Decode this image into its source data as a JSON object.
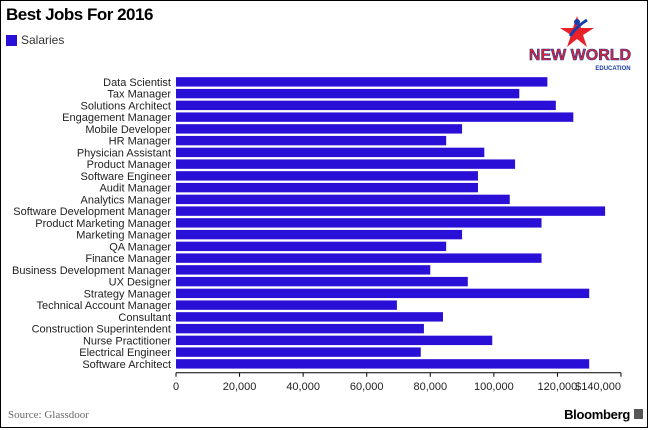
{
  "title": "Best Jobs For 2016",
  "legend": {
    "label": "Salaries",
    "color": "#2a0fd6"
  },
  "source": "Source: Glassdoor",
  "brand": "Bloomberg",
  "logo": {
    "line1": "NEW WORLD",
    "line2": "EDUCATION",
    "colors": {
      "red": "#e8202a",
      "blue": "#1a3ea8"
    }
  },
  "chart_data": {
    "type": "bar",
    "orientation": "horizontal",
    "categories": [
      "Data Scientist",
      "Tax Manager",
      "Solutions Architect",
      "Engagement Manager",
      "Mobile Developer",
      "HR Manager",
      "Physician Assistant",
      "Product Manager",
      "Software Engineer",
      "Audit Manager",
      "Analytics Manager",
      "Software Development Manager",
      "Product Marketing Manager",
      "Marketing Manager",
      "QA Manager",
      "Finance Manager",
      "Business Development Manager",
      "UX Designer",
      "Strategy Manager",
      "Technical Account Manager",
      "Consultant",
      "Construction Superintendent",
      "Nurse Practitioner",
      "Electrical Engineer",
      "Software Architect"
    ],
    "series": [
      {
        "name": "Salaries",
        "values": [
          116840,
          108000,
          119500,
          125000,
          90000,
          85000,
          97000,
          106680,
          95000,
          95000,
          105000,
          135000,
          115000,
          90000,
          85000,
          115000,
          80000,
          91800,
          130000,
          69500,
          84000,
          78000,
          99500,
          77000,
          130000
        ]
      }
    ],
    "xlim": [
      0,
      140000
    ],
    "xticks": [
      0,
      20000,
      40000,
      60000,
      80000,
      100000,
      120000,
      140000
    ],
    "xtick_labels": [
      "0",
      "20,000",
      "40,000",
      "60,000",
      "80,000",
      "100,000",
      "120,000",
      "$140,000"
    ],
    "bar_color": "#2a0fd6",
    "grid": false,
    "legend_position": "top-left"
  }
}
